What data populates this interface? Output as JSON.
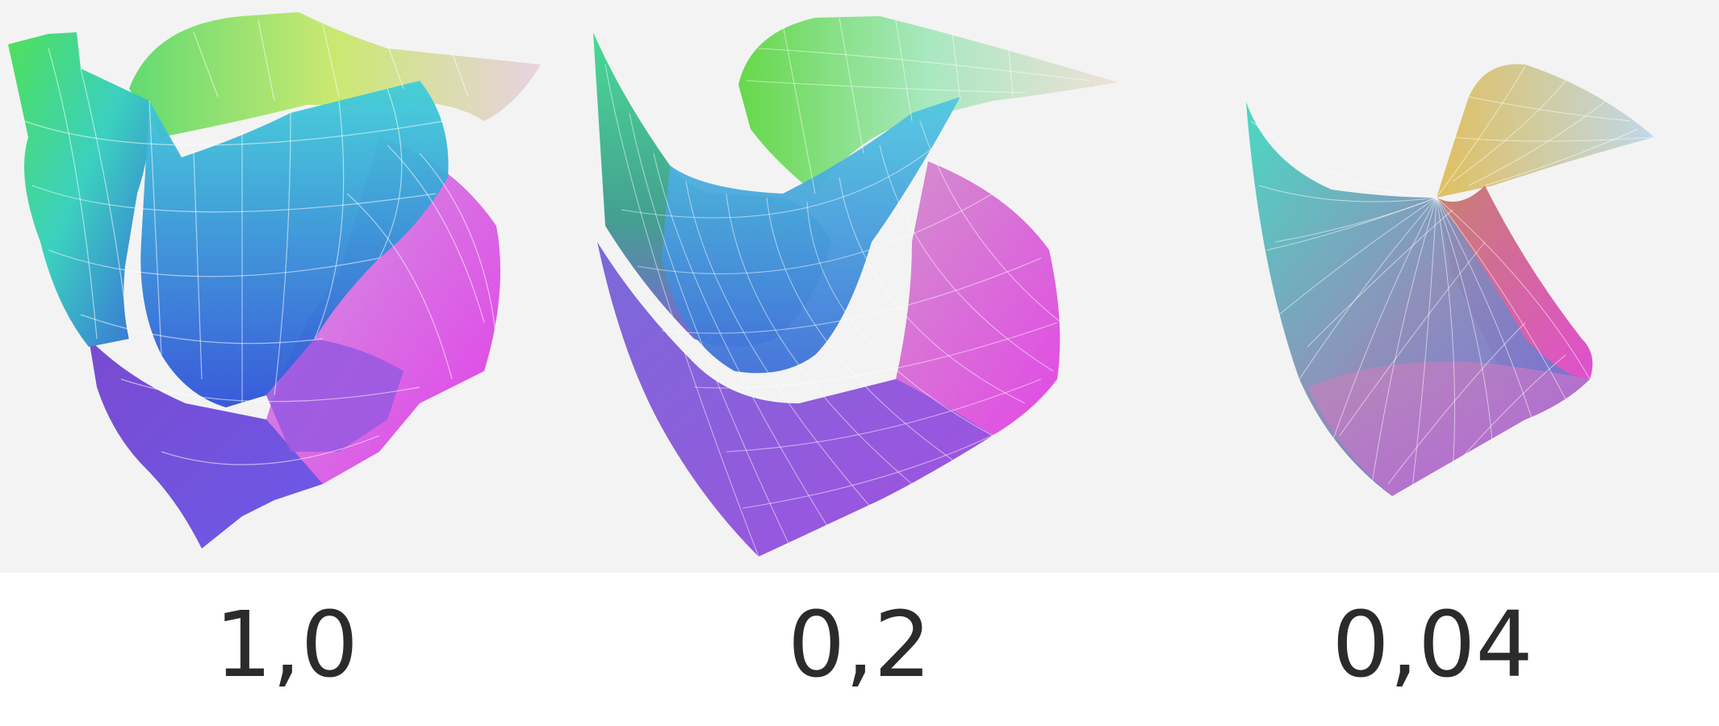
{
  "panels": [
    {
      "label": "1,0",
      "surface": "coarse-shell-surface"
    },
    {
      "label": "0,2",
      "surface": "medium-shell-surface"
    },
    {
      "label": "0,04",
      "surface": "fine-shell-surface"
    }
  ],
  "colors": {
    "background": "#f3f3f3",
    "label_text": "#2b2b2b",
    "green": "#4fe05a",
    "cyan": "#40c8e0",
    "blue": "#4a5ae8",
    "magenta": "#e040e8",
    "yellow": "#e6e84a",
    "mesh_line": "#ffffff"
  }
}
